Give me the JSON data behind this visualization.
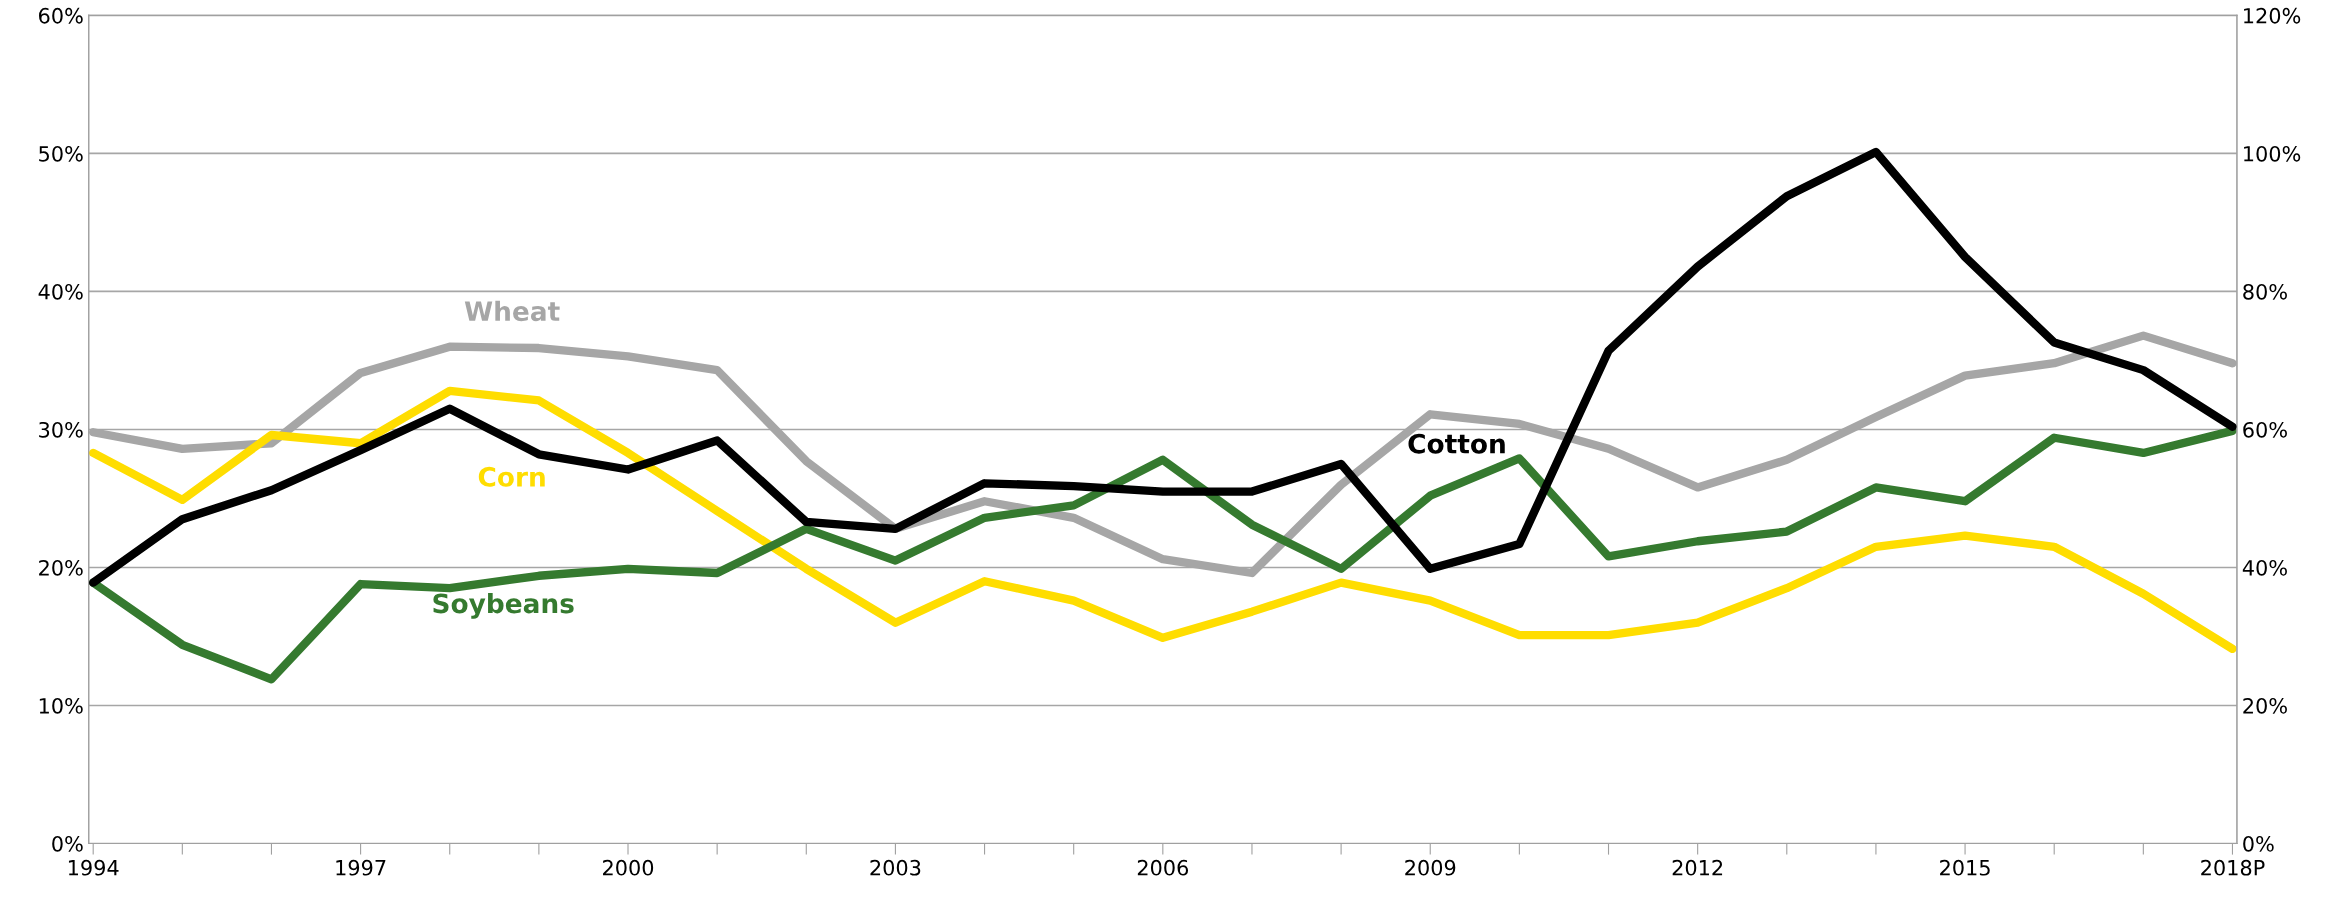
{
  "chart_data": {
    "type": "line",
    "categories": [
      "1994",
      null,
      null,
      "1997",
      null,
      null,
      "2000",
      null,
      null,
      "2003",
      null,
      null,
      "2006",
      null,
      null,
      "2009",
      null,
      null,
      "2012",
      null,
      null,
      "2015",
      null,
      null,
      "2018P"
    ],
    "series": [
      {
        "name": "Wheat",
        "color": "#a6a6a6",
        "values": [
          29.8,
          28.6,
          29.0,
          34.1,
          36.0,
          35.9,
          35.3,
          34.3,
          27.7,
          22.8,
          24.8,
          23.6,
          20.6,
          19.6,
          26.0,
          31.1,
          30.4,
          28.6,
          25.8,
          27.8,
          30.9,
          33.9,
          34.8,
          36.8,
          34.8
        ]
      },
      {
        "name": "Corn",
        "color": "#ffdd00",
        "values": [
          28.3,
          24.9,
          29.6,
          29.0,
          32.8,
          32.1,
          28.3,
          24.1,
          19.9,
          16.0,
          19.0,
          17.6,
          14.9,
          16.8,
          18.9,
          17.6,
          15.1,
          15.1,
          16.0,
          18.5,
          21.5,
          22.3,
          21.5,
          18.1,
          14.1
        ]
      },
      {
        "name": "Soybeans",
        "color": "#357a2f",
        "values": [
          18.9,
          14.4,
          11.9,
          18.8,
          18.5,
          19.4,
          19.9,
          19.6,
          22.8,
          20.5,
          23.6,
          24.5,
          27.8,
          23.1,
          19.9,
          25.2,
          27.9,
          20.8,
          21.9,
          22.6,
          25.8,
          24.8,
          29.4,
          28.3,
          29.9
        ]
      },
      {
        "name": "Cotton",
        "color": "#000000",
        "axis": "y2",
        "values": [
          37.8,
          47.0,
          51.2,
          57.0,
          63.0,
          56.4,
          54.2,
          58.4,
          46.6,
          45.6,
          52.2,
          51.8,
          51.0,
          51.0,
          55.0,
          39.8,
          43.4,
          71.4,
          83.6,
          93.8,
          100.2,
          85.0,
          72.6,
          68.6,
          60.4
        ]
      }
    ],
    "ylim": [
      0,
      60
    ],
    "yticks": [
      {
        "value": 0,
        "label": "0%"
      },
      {
        "value": 10,
        "label": "10%"
      },
      {
        "value": 20,
        "label": "20%"
      },
      {
        "value": 30,
        "label": "30%"
      },
      {
        "value": 40,
        "label": "40%"
      },
      {
        "value": 50,
        "label": "50%"
      },
      {
        "value": 60,
        "label": "60%"
      }
    ],
    "y2lim": [
      0,
      120
    ],
    "y2ticks": [
      {
        "value": 0,
        "label": "0%"
      },
      {
        "value": 20,
        "label": "20%"
      },
      {
        "value": 40,
        "label": "40%"
      },
      {
        "value": 60,
        "label": "60%"
      },
      {
        "value": 80,
        "label": "80%"
      },
      {
        "value": 100,
        "label": "100%"
      },
      {
        "value": 120,
        "label": "120%"
      }
    ],
    "grid": "y",
    "legend": false,
    "marker": "none",
    "line_style": "solid"
  }
}
